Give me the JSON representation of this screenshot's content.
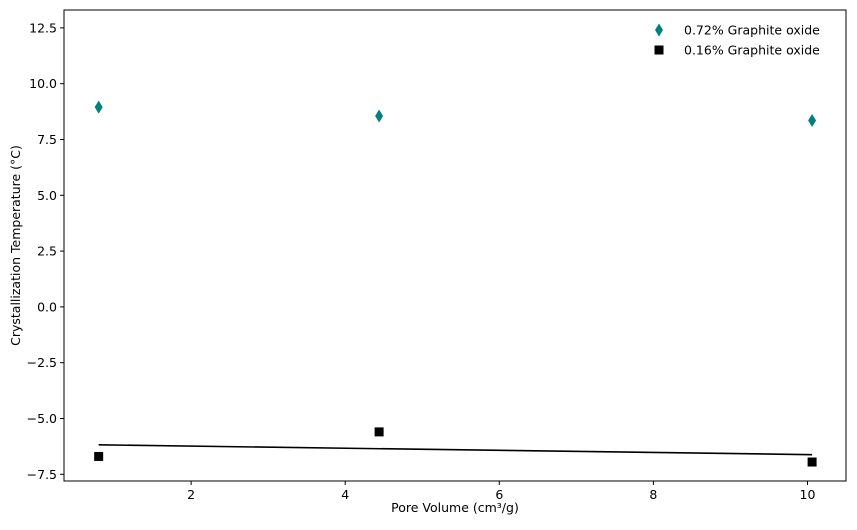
{
  "chart_data": {
    "type": "scatter",
    "title": "",
    "xlabel": "Pore Volume (cm³/g)",
    "ylabel": "Crystallization Temperature (°C)",
    "xlim": [
      0.35,
      10.5
    ],
    "ylim": [
      -7.8,
      13.3
    ],
    "xticks": [
      2,
      4,
      6,
      8,
      10
    ],
    "yticks": [
      -7.5,
      -5.0,
      -2.5,
      0.0,
      2.5,
      5.0,
      7.5,
      10.0,
      12.5
    ],
    "xtick_labels": [
      "2",
      "4",
      "6",
      "8",
      "10"
    ],
    "ytick_labels": [
      "−7.5",
      "−5.0",
      "−2.5",
      "0.0",
      "2.5",
      "5.0",
      "7.5",
      "10.0",
      "12.5"
    ],
    "legend_position": "top-right",
    "series": [
      {
        "name": "0.72% Graphite oxide",
        "marker": "diamond",
        "color": "#008080",
        "x": [
          0.8,
          4.44,
          10.06
        ],
        "y": [
          8.95,
          8.55,
          8.35
        ]
      },
      {
        "name": "0.16% Graphite oxide",
        "marker": "square",
        "color": "#000000",
        "x": [
          0.8,
          4.44,
          10.06
        ],
        "y": [
          -6.7,
          -5.6,
          -6.95
        ],
        "fit_line": {
          "x": [
            0.8,
            10.06
          ],
          "y": [
            -6.18,
            -6.62
          ],
          "color": "#000000"
        }
      }
    ]
  }
}
